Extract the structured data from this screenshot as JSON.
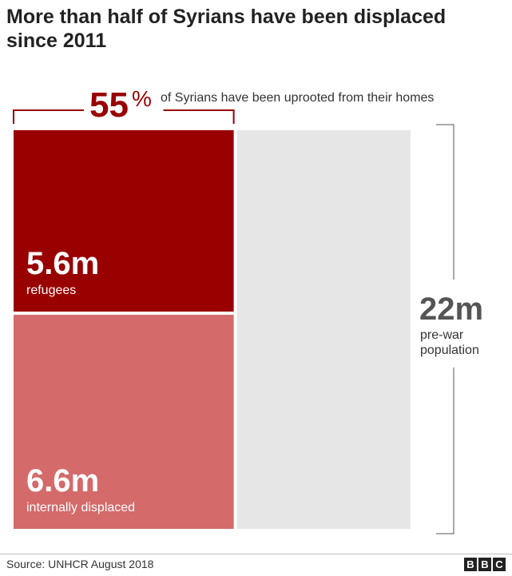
{
  "header": {
    "title": "More than half of Syrians have been displaced since 2011"
  },
  "chart_data": {
    "type": "stacked-area-proportion",
    "headline": {
      "value": "55",
      "unit": "%",
      "text": "of Syrians have been uprooted from their homes"
    },
    "total": {
      "value": 22,
      "label": "22m",
      "caption": [
        "pre-war",
        "population"
      ]
    },
    "segments": [
      {
        "name": "refugees",
        "value": 5.6,
        "label": "5.6m",
        "color": "#990000"
      },
      {
        "name": "internally displaced",
        "value": 6.6,
        "label": "6.6m",
        "color": "#d46a6a"
      }
    ],
    "remainder_color": "#e6e6e6",
    "accent_color": "#990000",
    "bracket_color": "#555555"
  },
  "footer": {
    "source": "Source: UNHCR August 2018",
    "logo_letters": [
      "B",
      "B",
      "C"
    ]
  }
}
